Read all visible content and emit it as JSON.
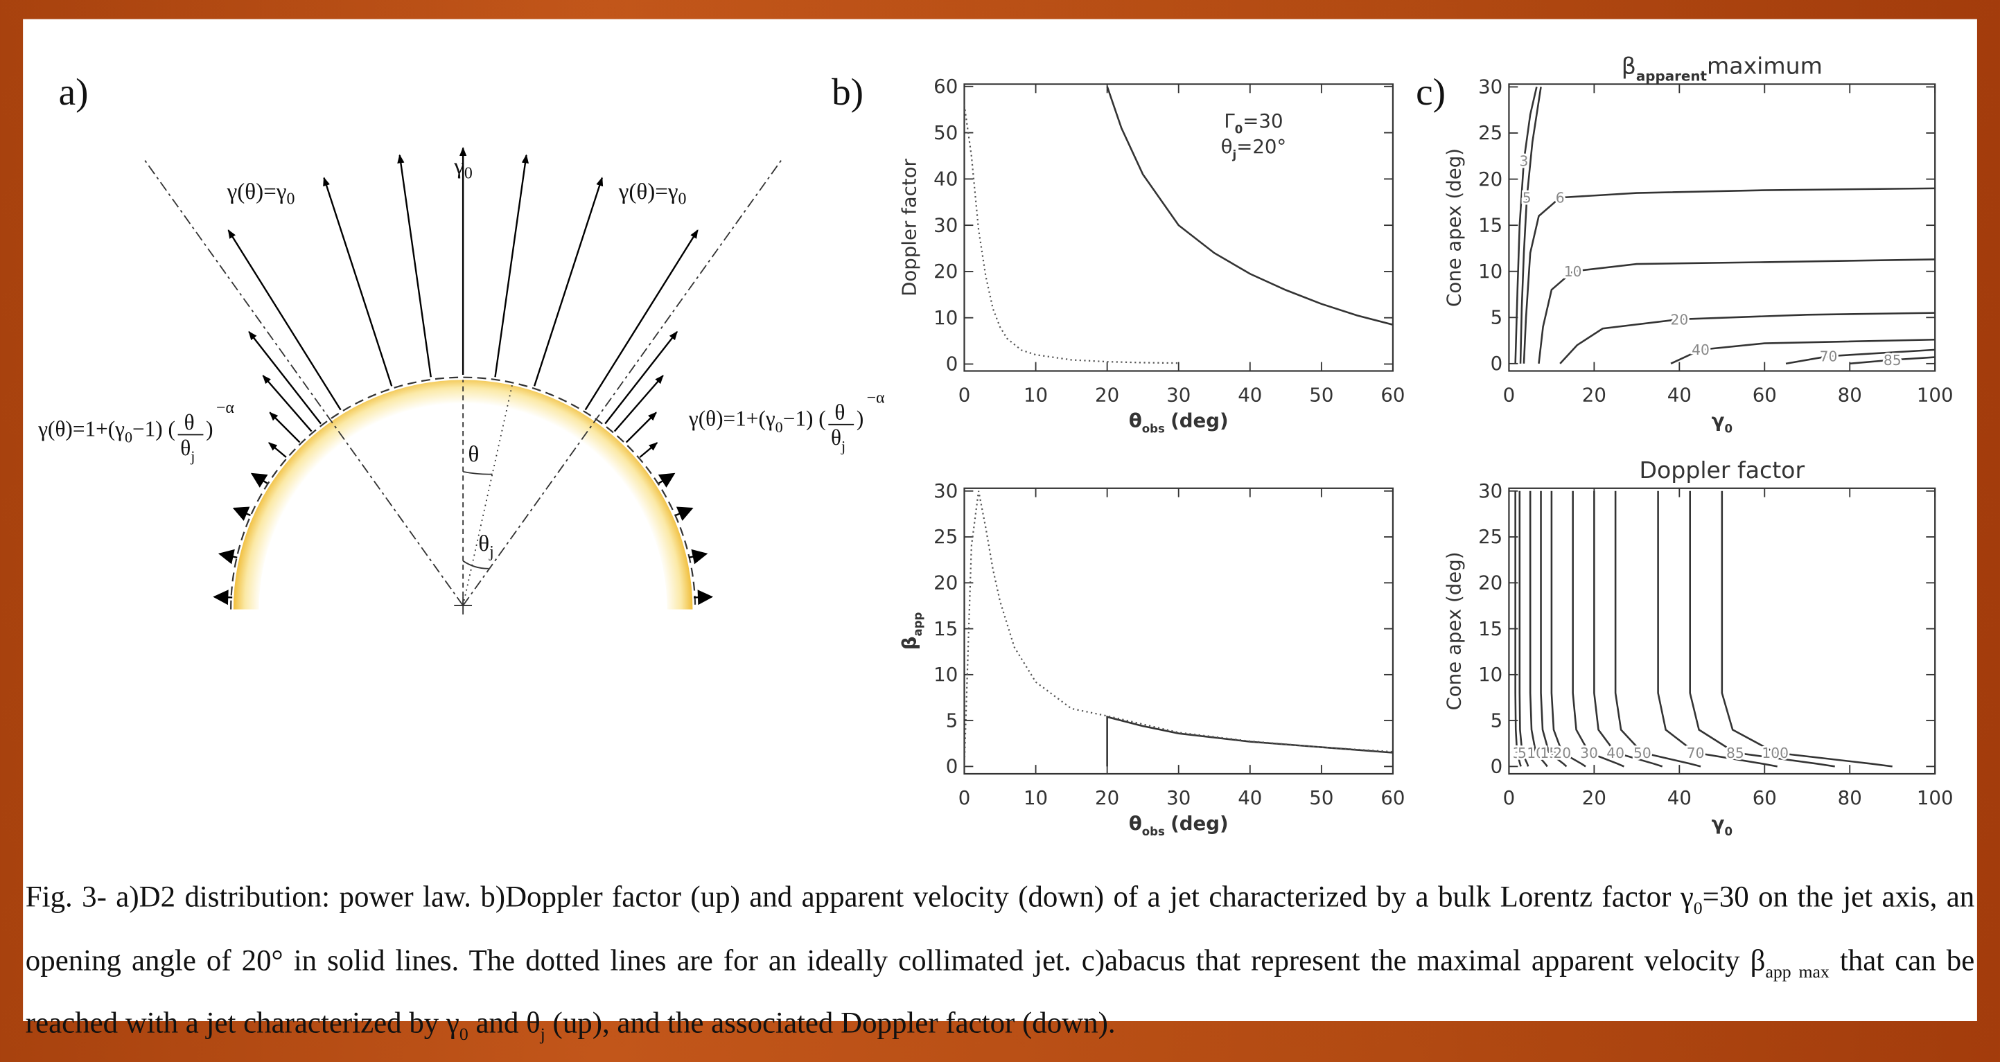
{
  "panels": {
    "a": "a)",
    "b": "b)",
    "c": "c)"
  },
  "diagram": {
    "top_label": {
      "symbol": "γ",
      "subscript": "0"
    },
    "cone_label": {
      "symbol": "γ(θ)=γ",
      "subscript": "0"
    },
    "formula": {
      "prefix": "γ(θ)=1+(γ",
      "sub": "0",
      "mid": "−1) (",
      "numerator": "θ",
      "denominator": "θ",
      "denominator_sub": "j",
      "suffix": ")",
      "exponent": "−α"
    },
    "theta": "θ",
    "theta_j": {
      "symbol": "θ",
      "subscript": "j"
    }
  },
  "chart_data": [
    {
      "type": "line",
      "y_label": "Doppler factor",
      "x_label": {
        "symbol": "θ",
        "subscript": "obs",
        "text": "(deg)"
      },
      "annotations": [
        {
          "symbol": "Γ",
          "subscript": "0",
          "text": "=30"
        },
        {
          "symbol": "θ",
          "subscript": "j",
          "text": "=20°"
        }
      ],
      "xlim": [
        0,
        60
      ],
      "ylim": [
        -1.5,
        60.5
      ],
      "xticks": [
        0,
        10,
        20,
        30,
        40,
        50,
        60
      ],
      "yticks": [
        0,
        10,
        20,
        30,
        40,
        50,
        60
      ],
      "series": [
        {
          "style": "solid",
          "color": "#333333",
          "x": [
            20,
            22,
            25,
            30,
            35,
            40,
            45,
            50,
            55,
            60
          ],
          "values": [
            60,
            51,
            41,
            30,
            24,
            19.5,
            16,
            13,
            10.5,
            8.5
          ]
        },
        {
          "style": "dotted",
          "color": "#555555",
          "x": [
            0,
            1,
            2,
            3,
            4,
            5,
            6,
            8,
            10,
            15,
            20,
            25,
            30
          ],
          "values": [
            56,
            45,
            29,
            19,
            12,
            8,
            5.5,
            3,
            2,
            0.9,
            0.5,
            0.3,
            0.2
          ]
        }
      ]
    },
    {
      "type": "line",
      "y_label": {
        "symbol": "β",
        "subscript": "app"
      },
      "x_label": {
        "symbol": "θ",
        "subscript": "obs",
        "text": "(deg)"
      },
      "xlim": [
        0,
        60
      ],
      "ylim": [
        -0.8,
        30.3
      ],
      "xticks": [
        0,
        10,
        20,
        30,
        40,
        50,
        60
      ],
      "yticks": [
        0,
        5,
        10,
        15,
        20,
        25,
        30
      ],
      "series": [
        {
          "style": "solid",
          "color": "#333333",
          "x": [
            20,
            20,
            25,
            30,
            40,
            50,
            60
          ],
          "values": [
            0,
            5.4,
            4.4,
            3.6,
            2.7,
            2.1,
            1.5
          ]
        },
        {
          "style": "dotted",
          "color": "#555555",
          "x": [
            0,
            1,
            2,
            3,
            4,
            5,
            7,
            10,
            15,
            20,
            30,
            40,
            50,
            60
          ],
          "values": [
            0,
            24,
            30,
            26,
            21.5,
            18,
            13,
            9.2,
            6.3,
            5.5,
            3.7,
            2.75,
            2.1,
            1.6
          ]
        }
      ]
    },
    {
      "type": "contour",
      "title": {
        "symbol": "β",
        "subscript": "apparent",
        "text": "maximum"
      },
      "y_label": "Cone apex (deg)",
      "x_label": {
        "symbol": "γ",
        "subscript": "0"
      },
      "xlim": [
        0,
        100
      ],
      "ylim": [
        -0.8,
        30.3
      ],
      "xticks": [
        0,
        20,
        40,
        60,
        80,
        100
      ],
      "yticks": [
        0,
        5,
        10,
        15,
        20,
        25,
        30
      ],
      "series": [
        {
          "name": "3",
          "x": [
            1.5,
            2,
            2.5,
            3.5,
            5,
            6.5
          ],
          "values": [
            0,
            8,
            15,
            22,
            27,
            30
          ]
        },
        {
          "name": "5",
          "x": [
            2.7,
            3,
            3.5,
            4.2,
            5.5,
            7.5
          ],
          "values": [
            0,
            6,
            12,
            18,
            24,
            30
          ]
        },
        {
          "name": "6",
          "x": [
            3.5,
            4,
            5,
            7,
            12,
            30,
            60,
            100
          ],
          "values": [
            0,
            5,
            12,
            16,
            18,
            18.5,
            18.8,
            19
          ]
        },
        {
          "name": "10",
          "x": [
            7,
            8,
            10,
            15,
            30,
            60,
            100
          ],
          "values": [
            0,
            4,
            8,
            10,
            10.8,
            11,
            11.3
          ]
        },
        {
          "name": "20",
          "x": [
            12,
            16,
            22,
            40,
            70,
            100
          ],
          "values": [
            0,
            2,
            3.8,
            4.8,
            5.3,
            5.5
          ]
        },
        {
          "name": "40",
          "x": [
            38,
            45,
            60,
            100
          ],
          "values": [
            0,
            1.5,
            2.2,
            2.6
          ]
        },
        {
          "name": "70",
          "x": [
            65,
            75,
            100
          ],
          "values": [
            0,
            0.8,
            1.5
          ]
        },
        {
          "name": "85",
          "x": [
            80,
            90,
            100
          ],
          "values": [
            0,
            0.4,
            0.7
          ]
        }
      ]
    },
    {
      "type": "contour",
      "title": "Doppler factor",
      "y_label": "Cone apex (deg)",
      "x_label": {
        "symbol": "γ",
        "subscript": "0"
      },
      "xlim": [
        0,
        100
      ],
      "ylim": [
        -0.8,
        30.3
      ],
      "xticks": [
        0,
        20,
        40,
        60,
        80,
        100
      ],
      "yticks": [
        0,
        5,
        10,
        15,
        20,
        25,
        30
      ],
      "series": [
        {
          "name": "3",
          "x": [
            1.5,
            1.5,
            1.6,
            1.9,
            2.6,
            2.8
          ],
          "values": [
            30,
            8,
            4,
            1.5,
            0.3,
            0
          ]
        },
        {
          "name": "5",
          "x": [
            2.5,
            2.5,
            2.6,
            3.1,
            4.3,
            4.5
          ],
          "values": [
            30,
            8,
            4,
            1.5,
            0.3,
            0
          ]
        },
        {
          "name": "10",
          "x": [
            5,
            5,
            5.3,
            6.3,
            8.5,
            9
          ],
          "values": [
            30,
            8,
            4,
            1.5,
            0.3,
            0
          ]
        },
        {
          "name": "15",
          "x": [
            7.5,
            7.5,
            7.9,
            9.4,
            12.8,
            13.5
          ],
          "values": [
            30,
            8,
            4,
            1.5,
            0.3,
            0
          ]
        },
        {
          "name": "20",
          "x": [
            10,
            10,
            10.5,
            12.5,
            17,
            18
          ],
          "values": [
            30,
            8,
            4,
            1.5,
            0.3,
            0
          ]
        },
        {
          "name": "30",
          "x": [
            15,
            15,
            15.8,
            18.8,
            25.5,
            27
          ],
          "values": [
            30,
            8,
            4,
            1.5,
            0.3,
            0
          ]
        },
        {
          "name": "40",
          "x": [
            20,
            20,
            21,
            25,
            34,
            36
          ],
          "values": [
            30,
            8,
            4,
            1.5,
            0.3,
            0
          ]
        },
        {
          "name": "50",
          "x": [
            25,
            25,
            26.3,
            31.3,
            42.5,
            45
          ],
          "values": [
            30,
            8,
            4,
            1.5,
            0.3,
            0
          ]
        },
        {
          "name": "70",
          "x": [
            35,
            35,
            36.8,
            43.8,
            59.5,
            63
          ],
          "values": [
            30,
            8,
            4,
            1.5,
            0.3,
            0
          ]
        },
        {
          "name": "85",
          "x": [
            42.5,
            42.5,
            44.6,
            53.1,
            72.3,
            76.5
          ],
          "values": [
            30,
            8,
            4,
            1.5,
            0.3,
            0
          ]
        },
        {
          "name": "100",
          "x": [
            50,
            50,
            52.5,
            62.5,
            85,
            90
          ],
          "values": [
            30,
            8,
            4,
            1.5,
            0.3,
            0
          ]
        }
      ]
    }
  ],
  "caption": {
    "parts": [
      "Fig. 3- a)D2 distribution: power law. b)Doppler factor (up) and apparent velocity (down) of a jet characterized by a bulk Lorentz factor γ",
      "0",
      "=30 on the jet axis, an opening angle of 20° in solid lines. The dotted lines are for an ideally collimated jet. c)abacus that represent the maximal apparent velocity β",
      "app max",
      " that can be reached with a jet characterized by γ",
      "0",
      " and θ",
      "j",
      " (up), and the associated Doppler factor (down)."
    ]
  }
}
